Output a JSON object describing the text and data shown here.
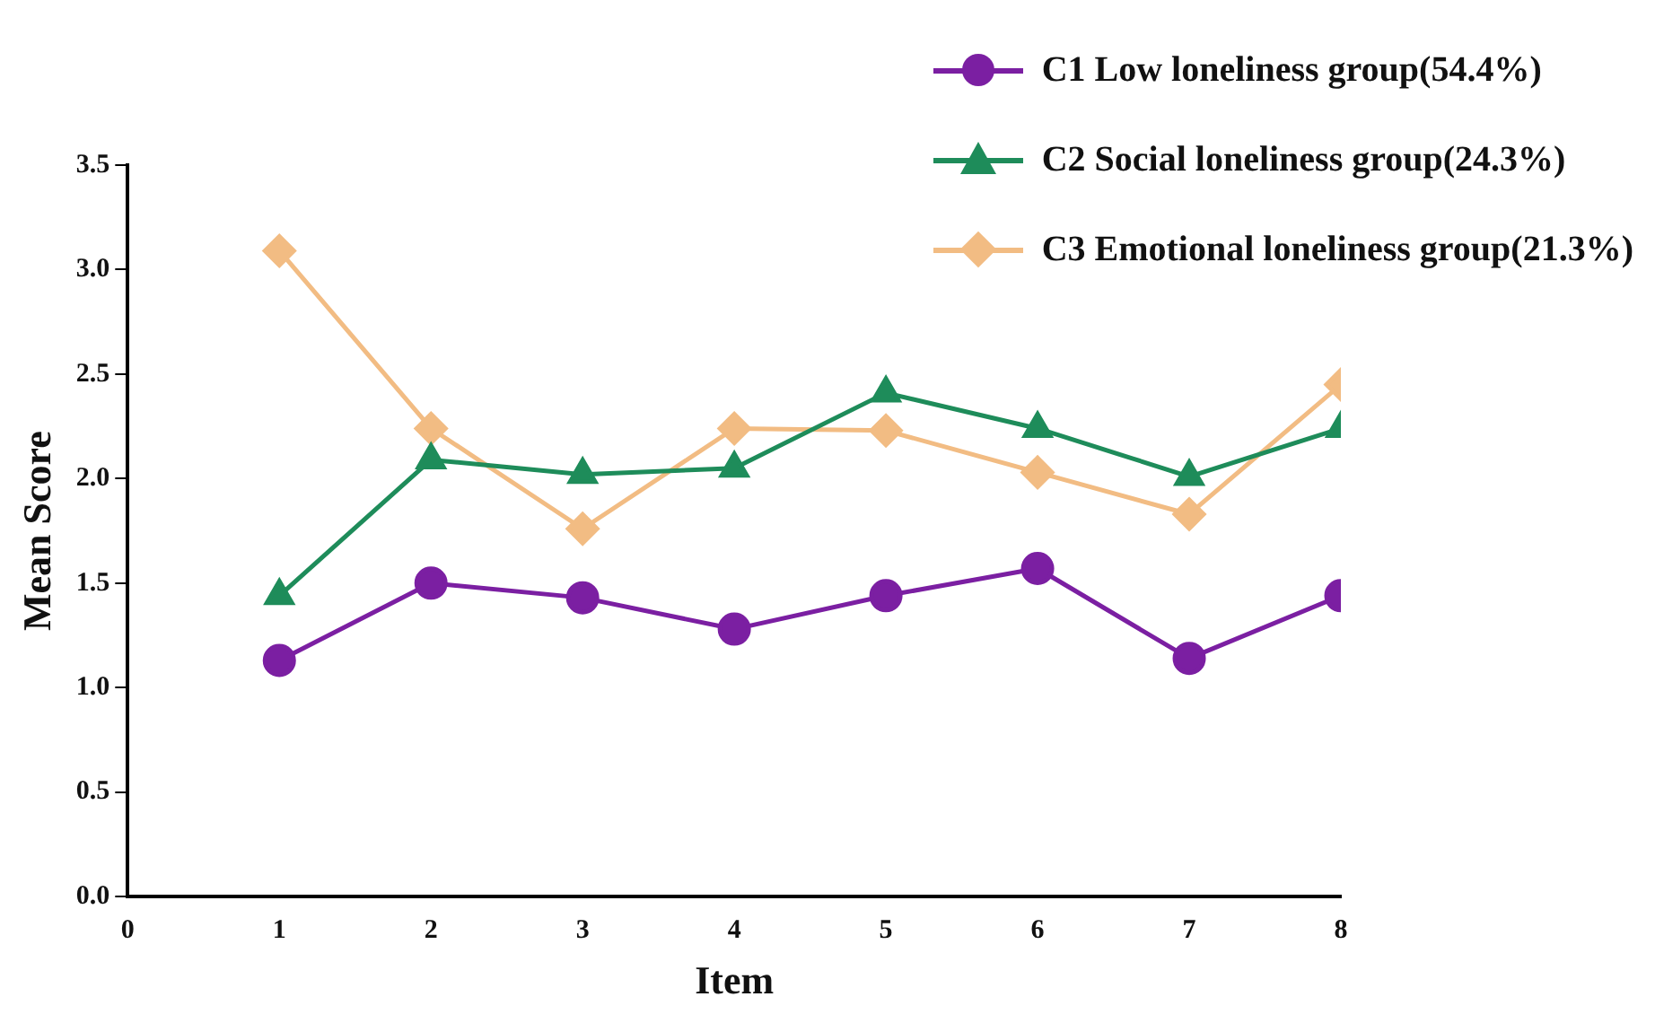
{
  "chart_data": {
    "type": "line",
    "xlabel": "Item",
    "ylabel": "Mean Score",
    "x": [
      1,
      2,
      3,
      4,
      5,
      6,
      7,
      8
    ],
    "xlim": [
      0,
      8
    ],
    "xticks": [
      0,
      1,
      2,
      3,
      4,
      5,
      6,
      7,
      8
    ],
    "ylim": [
      0,
      3.5
    ],
    "yticks": [
      {
        "value": 0,
        "label": "0.0"
      },
      {
        "value": 0.5,
        "label": "0.5"
      },
      {
        "value": 1,
        "label": "1.0"
      },
      {
        "value": 1.5,
        "label": "1.5"
      },
      {
        "value": 2,
        "label": "2.0"
      },
      {
        "value": 2.5,
        "label": "2.5"
      },
      {
        "value": 3,
        "label": "3.0"
      },
      {
        "value": 3.5,
        "label": "3.5"
      }
    ],
    "grid": false,
    "legend": "top right",
    "line_style": "solid",
    "series": [
      {
        "name": "C1 Low loneliness group(54.4%)",
        "color": "#7b1fa2",
        "marker": "circle",
        "values": [
          1.13,
          1.5,
          1.43,
          1.28,
          1.44,
          1.57,
          1.14,
          1.44
        ]
      },
      {
        "name": "C2 Social loneliness group(24.3%)",
        "color": "#1e8c5a",
        "marker": "triangle",
        "values": [
          1.44,
          2.09,
          2.02,
          2.05,
          2.41,
          2.24,
          2.01,
          2.24
        ]
      },
      {
        "name": "C3 Emotional loneliness group(21.3%)",
        "color": "#f2bc83",
        "marker": "diamond",
        "values": [
          3.09,
          2.24,
          1.76,
          2.24,
          2.23,
          2.03,
          1.83,
          2.45
        ]
      }
    ]
  }
}
